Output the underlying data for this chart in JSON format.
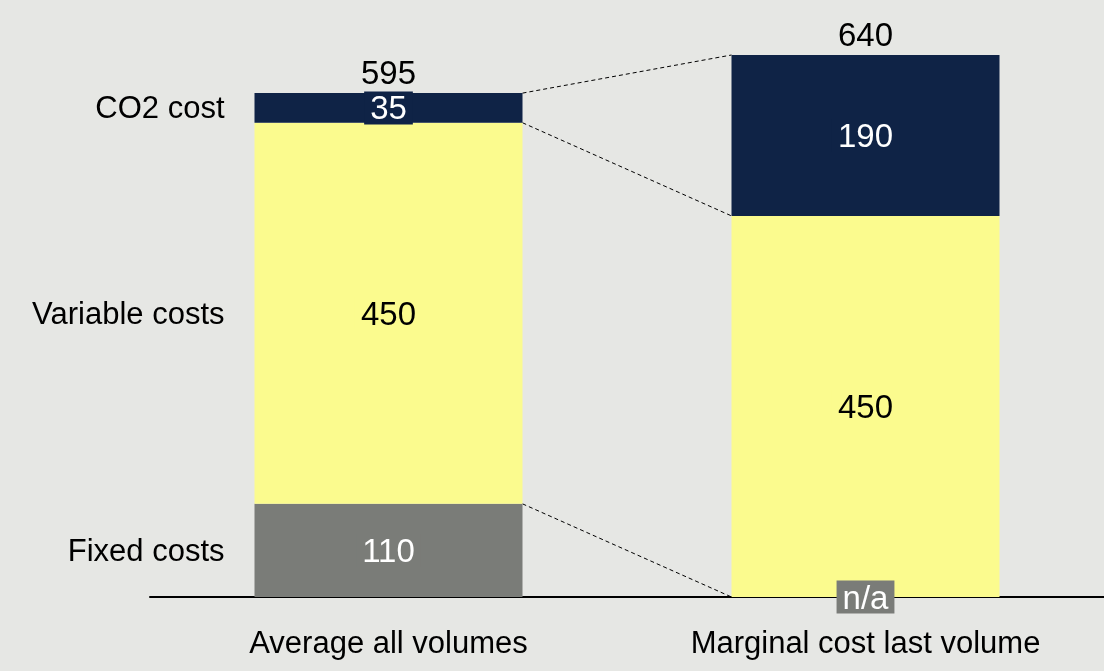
{
  "chart_data": {
    "type": "bar",
    "stacked": true,
    "legend": false,
    "categories": [
      "Average all volumes",
      "Marginal cost last volume"
    ],
    "series": [
      {
        "name": "Fixed costs",
        "color": "#7a7c78",
        "values": [
          110,
          null
        ],
        "value_labels": [
          "110",
          "n/a"
        ]
      },
      {
        "name": "Variable costs",
        "color": "#fbfb8e",
        "values": [
          450,
          450
        ],
        "value_labels": [
          "450",
          "450"
        ]
      },
      {
        "name": "CO2 cost",
        "color": "#0f2346",
        "values": [
          35,
          190
        ],
        "value_labels": [
          "35",
          "190"
        ]
      }
    ],
    "totals": [
      "595",
      "640"
    ]
  }
}
